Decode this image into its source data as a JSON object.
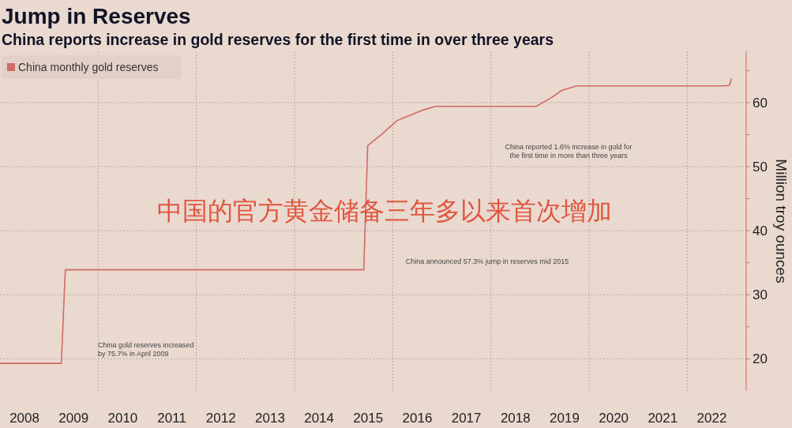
{
  "chart_data": {
    "type": "line",
    "title": "Jump in Reserves",
    "subtitle": "China reports increase in gold reserves for the first time in over three years",
    "ylabel": "Million troy ounces",
    "x": [
      2008.0,
      2009.25,
      2009.33,
      2015.41,
      2015.49,
      2015.77,
      2016.09,
      2016.41,
      2016.6,
      2016.87,
      2018.92,
      2019.24,
      2019.44,
      2019.75,
      2022.76,
      2022.86,
      2022.9
    ],
    "series": [
      {
        "name": "China monthly gold reserves",
        "color": "#d06a64",
        "values": [
          19.3,
          19.3,
          33.9,
          33.9,
          53.3,
          55.0,
          57.2,
          58.2,
          58.8,
          59.4,
          59.4,
          60.8,
          61.9,
          62.6,
          62.6,
          62.7,
          63.7
        ]
      }
    ],
    "xlim": [
      2008,
      2023.2
    ],
    "ylim": [
      15,
      68
    ],
    "xticks": [
      {
        "value": 2008.5,
        "label": "2008"
      },
      {
        "value": 2009.5,
        "label": "2009"
      },
      {
        "value": 2010.5,
        "label": "2010"
      },
      {
        "value": 2011.5,
        "label": "2011"
      },
      {
        "value": 2012.5,
        "label": "2012"
      },
      {
        "value": 2013.5,
        "label": "2013"
      },
      {
        "value": 2014.5,
        "label": "2014"
      },
      {
        "value": 2015.5,
        "label": "2015"
      },
      {
        "value": 2016.5,
        "label": "2016"
      },
      {
        "value": 2017.5,
        "label": "2017"
      },
      {
        "value": 2018.5,
        "label": "2018"
      },
      {
        "value": 2019.5,
        "label": "2019"
      },
      {
        "value": 2020.5,
        "label": "2020"
      },
      {
        "value": 2021.5,
        "label": "2021"
      },
      {
        "value": 2022.5,
        "label": "2022"
      },
      {
        "value": 2010,
        "label": null
      },
      {
        "value": 2012,
        "label": null
      },
      {
        "value": 2014,
        "label": null
      },
      {
        "value": 2016,
        "label": null
      },
      {
        "value": 2018,
        "label": null
      },
      {
        "value": 2020,
        "label": null
      },
      {
        "value": 2022,
        "label": null
      }
    ],
    "yticks": [
      20,
      30,
      40,
      50,
      60,
      {
        "value": 25,
        "label": null
      },
      {
        "value": 35,
        "label": null
      },
      {
        "value": 45,
        "label": null
      },
      {
        "value": 55,
        "label": null
      },
      {
        "value": 65,
        "label": null
      }
    ],
    "grid": true,
    "legend": "top left",
    "annotations": [
      "China gold reserves increased\nby 75.7% in April 2009",
      "China announced 57.3% jump in reserves mid 2015",
      "China reported 1.6% increase in gold for\nthe first time in more than three years",
      "中国的官方黄金储备三年多以来首次增加"
    ]
  }
}
